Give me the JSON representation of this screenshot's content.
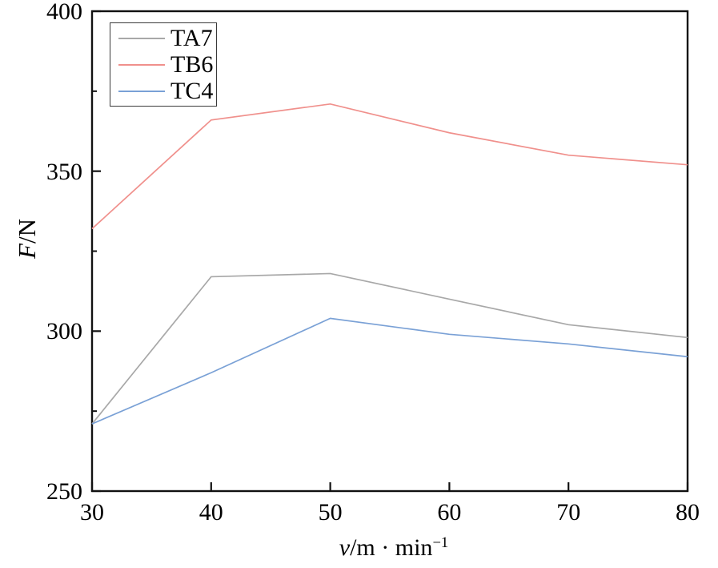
{
  "chart_data": {
    "type": "line",
    "title": "",
    "x": [
      30,
      40,
      50,
      60,
      70,
      80
    ],
    "series": [
      {
        "name": "TA7",
        "color": "#a8a8a8",
        "values": [
          271,
          317,
          318,
          310,
          302,
          298
        ]
      },
      {
        "name": "TB6",
        "color": "#f0908c",
        "values": [
          332,
          366,
          371,
          362,
          355,
          352
        ]
      },
      {
        "name": "TC4",
        "color": "#7aa1d6",
        "values": [
          271,
          287,
          304,
          299,
          296,
          292
        ]
      }
    ],
    "xlim": [
      30,
      80
    ],
    "ylim": [
      250,
      400
    ],
    "x_ticks": [
      30,
      40,
      50,
      60,
      70,
      80
    ],
    "y_ticks": [
      250,
      300,
      350,
      400
    ],
    "y_minor_ticks": [
      275,
      325,
      375
    ],
    "xlabel": {
      "italic": "v",
      "text": "/m · min",
      "sup": "−1"
    },
    "ylabel": {
      "italic": "F",
      "text": "/N"
    },
    "legend": {
      "position": "top-left"
    },
    "grid": false,
    "axis_color": "#111111",
    "text_color": "#000000"
  }
}
